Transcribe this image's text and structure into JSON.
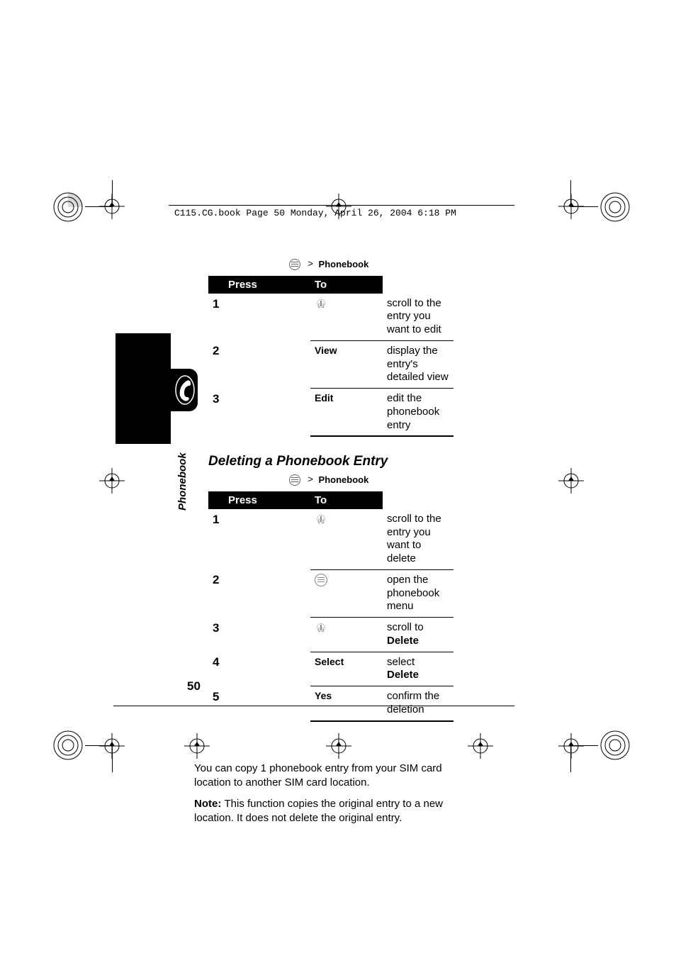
{
  "header": {
    "running": "C115.CG.book  Page 50  Monday, April 26, 2004  6:18 PM"
  },
  "breadcrumb": {
    "gt": ">",
    "label": "Phonebook"
  },
  "table1": {
    "head_press": "Press",
    "head_to": "To",
    "rows": [
      {
        "n": "1",
        "press_type": "nav",
        "press": "",
        "to": "scroll to the entry you want to edit"
      },
      {
        "n": "2",
        "press_type": "text",
        "press": "View",
        "to": "display the entry's detailed view"
      },
      {
        "n": "3",
        "press_type": "text",
        "press": "Edit",
        "to": "edit the phonebook entry"
      }
    ]
  },
  "section_heading": "Deleting a Phonebook Entry",
  "table2": {
    "head_press": "Press",
    "head_to": "To",
    "rows": [
      {
        "n": "1",
        "press_type": "nav",
        "press": "",
        "to": "scroll to the entry you want to delete"
      },
      {
        "n": "2",
        "press_type": "menu",
        "press": "",
        "to": "open the phonebook menu"
      },
      {
        "n": "3",
        "press_type": "nav",
        "press": "",
        "to_pre": "scroll to ",
        "to_bold": "Delete"
      },
      {
        "n": "4",
        "press_type": "text",
        "press": "Select",
        "to_pre": "select ",
        "to_bold": "Delete"
      },
      {
        "n": "5",
        "press_type": "text",
        "press": "Yes",
        "to": "confirm the deletion"
      }
    ]
  },
  "paras": {
    "p1": "You can copy 1 phonebook entry from your SIM card location to another SIM card location.",
    "p2_pre": "Note: ",
    "p2": "This function copies the original entry to a new location. It does not delete the original entry."
  },
  "sidebar": {
    "label": "Phonebook"
  },
  "page_number": "50",
  "colors": {
    "black": "#000000",
    "white": "#ffffff",
    "crop": "#000000"
  }
}
